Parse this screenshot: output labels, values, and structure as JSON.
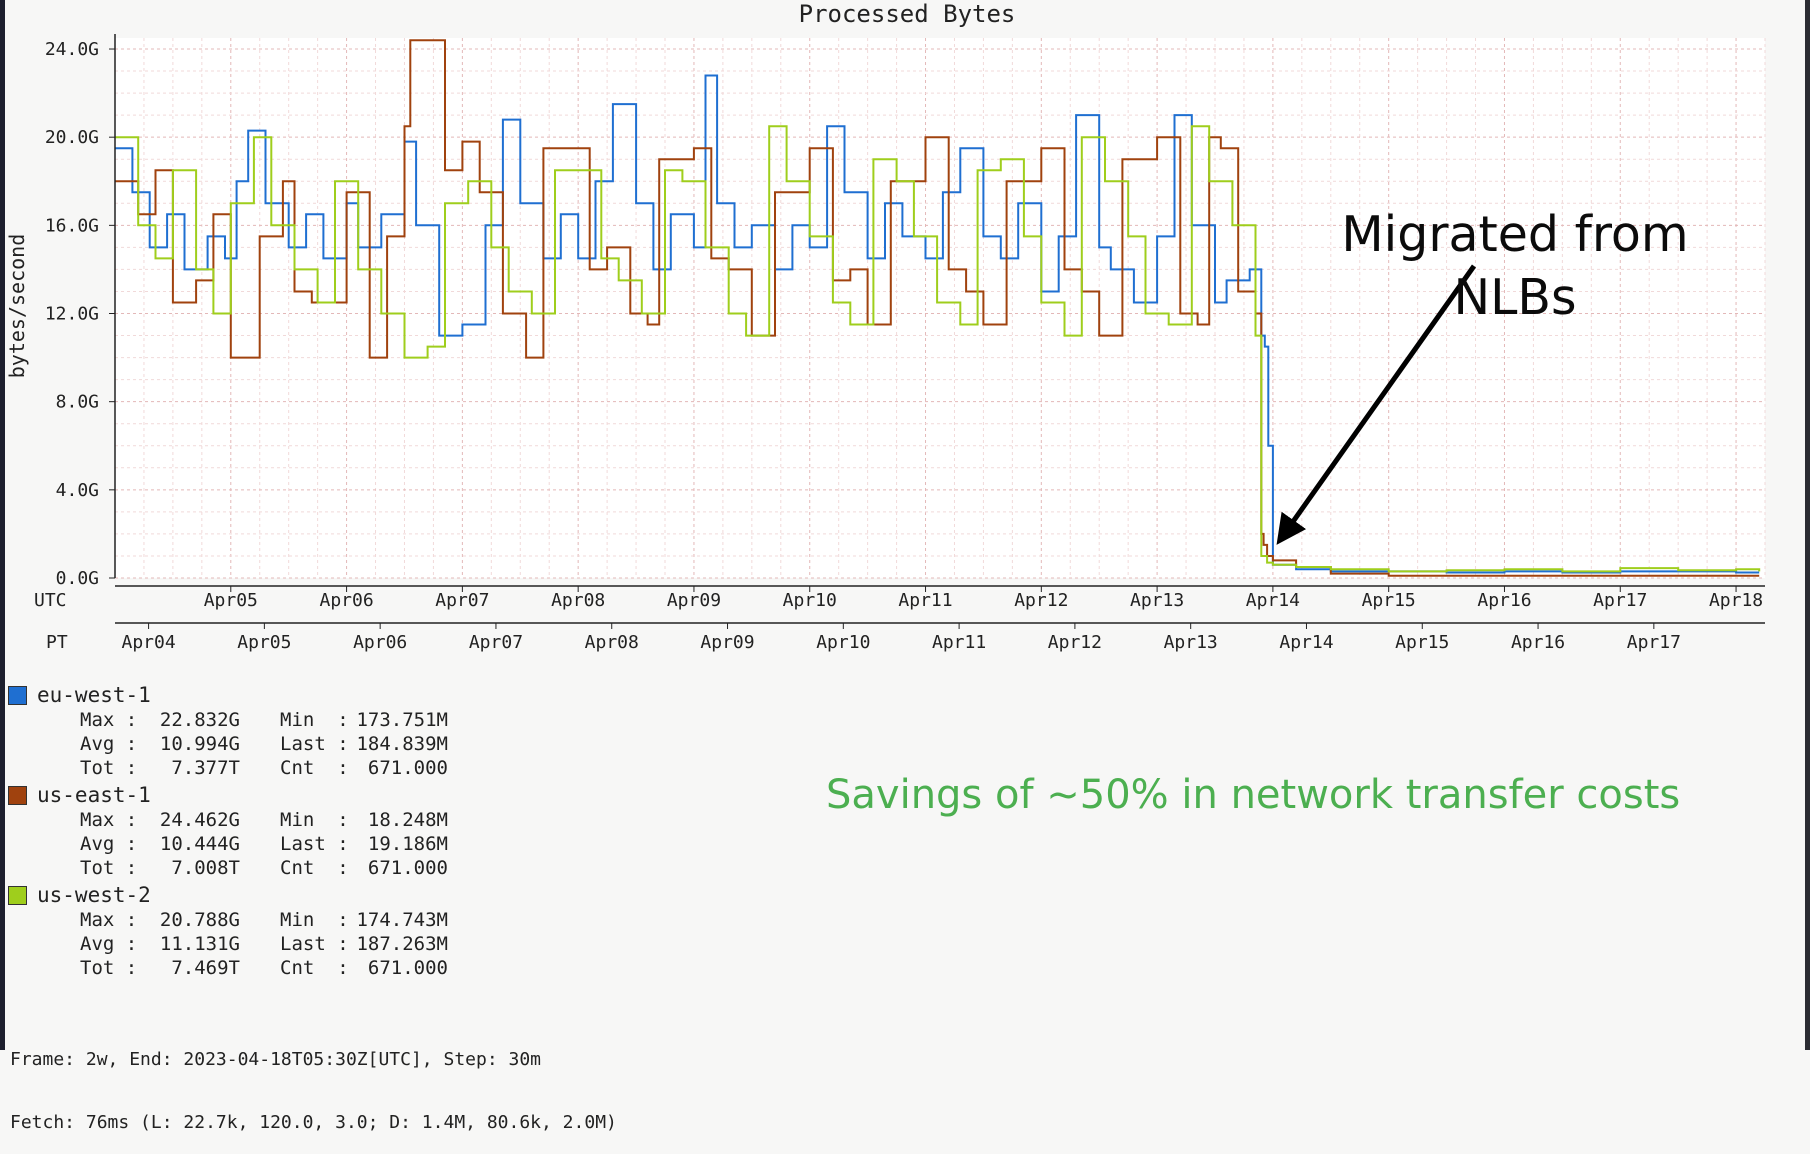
{
  "chart_data": {
    "type": "line",
    "title": "Processed Bytes",
    "ylabel": "bytes/second",
    "ylim": [
      0,
      24.5
    ],
    "yticks": [
      "0.0G",
      "4.0G",
      "8.0G",
      "12.0G",
      "16.0G",
      "20.0G",
      "24.0G"
    ],
    "ytick_values": [
      0,
      4,
      8,
      12,
      16,
      20,
      24
    ],
    "xlim": [
      3.0,
      17.25
    ],
    "utc_axis": {
      "label": "UTC",
      "ticks": [
        "Apr05",
        "Apr06",
        "Apr07",
        "Apr08",
        "Apr09",
        "Apr10",
        "Apr11",
        "Apr12",
        "Apr13",
        "Apr14",
        "Apr15",
        "Apr16",
        "Apr17",
        "Apr18"
      ],
      "tick_values": [
        4,
        5,
        6,
        7,
        8,
        9,
        10,
        11,
        12,
        13,
        14,
        15,
        16,
        17
      ]
    },
    "pt_axis": {
      "label": "PT",
      "ticks": [
        "Apr04",
        "Apr05",
        "Apr06",
        "Apr07",
        "Apr08",
        "Apr09",
        "Apr10",
        "Apr11",
        "Apr12",
        "Apr13",
        "Apr14",
        "Apr15",
        "Apr16",
        "Apr17"
      ],
      "tick_values": [
        3.29,
        4.29,
        5.29,
        6.29,
        7.29,
        8.29,
        9.29,
        10.29,
        11.29,
        12.29,
        13.29,
        14.29,
        15.29,
        16.29
      ]
    },
    "grid": true,
    "series": [
      {
        "name": "eu-west-1",
        "color": "#1f6fd1",
        "x": [
          3.0,
          3.15,
          3.3,
          3.45,
          3.6,
          3.8,
          3.95,
          4.05,
          4.15,
          4.3,
          4.5,
          4.65,
          4.8,
          5.0,
          5.1,
          5.3,
          5.5,
          5.6,
          5.8,
          6.0,
          6.2,
          6.35,
          6.5,
          6.7,
          6.85,
          7.0,
          7.15,
          7.3,
          7.5,
          7.65,
          7.8,
          8.0,
          8.1,
          8.2,
          8.35,
          8.5,
          8.7,
          8.85,
          9.0,
          9.15,
          9.3,
          9.5,
          9.65,
          9.8,
          10.0,
          10.15,
          10.3,
          10.5,
          10.65,
          10.8,
          11.0,
          11.15,
          11.3,
          11.5,
          11.6,
          11.8,
          12.0,
          12.15,
          12.3,
          12.5,
          12.6,
          12.8,
          12.9,
          12.93,
          12.96,
          13.0,
          13.2,
          13.5,
          14.0,
          14.5,
          15.0,
          15.5,
          16.0,
          16.5,
          17.0,
          17.2
        ],
        "y": [
          19.5,
          17.5,
          15.0,
          16.5,
          14.0,
          15.5,
          14.5,
          18.0,
          20.3,
          17.0,
          15.0,
          16.5,
          14.5,
          17.0,
          15.0,
          16.5,
          19.8,
          16.0,
          11.0,
          11.5,
          16.0,
          20.8,
          17.0,
          14.5,
          16.5,
          14.5,
          18.0,
          21.5,
          17.0,
          14.0,
          16.5,
          15.0,
          22.8,
          17.0,
          15.0,
          16.0,
          14.0,
          16.0,
          15.0,
          20.5,
          17.5,
          14.5,
          17.0,
          15.5,
          14.5,
          17.5,
          19.5,
          15.5,
          14.5,
          17.0,
          13.0,
          15.5,
          21.0,
          15.0,
          14.0,
          12.5,
          15.5,
          21.0,
          16.0,
          12.5,
          13.5,
          14.0,
          11.0,
          10.5,
          6.0,
          0.6,
          0.4,
          0.3,
          0.3,
          0.25,
          0.3,
          0.25,
          0.3,
          0.3,
          0.25,
          0.25
        ]
      },
      {
        "name": "us-east-1",
        "color": "#a0420e",
        "x": [
          3.0,
          3.2,
          3.35,
          3.5,
          3.7,
          3.85,
          4.0,
          4.25,
          4.45,
          4.55,
          4.7,
          5.0,
          5.2,
          5.35,
          5.5,
          5.55,
          5.85,
          6.0,
          6.15,
          6.35,
          6.55,
          6.7,
          7.0,
          7.1,
          7.25,
          7.45,
          7.6,
          7.7,
          8.0,
          8.15,
          8.3,
          8.5,
          8.7,
          9.0,
          9.2,
          9.35,
          9.5,
          9.7,
          10.0,
          10.2,
          10.35,
          10.5,
          10.7,
          11.0,
          11.2,
          11.35,
          11.5,
          11.7,
          12.0,
          12.2,
          12.35,
          12.45,
          12.55,
          12.7,
          12.85,
          12.9,
          12.92,
          12.95,
          13.0,
          13.2,
          13.5,
          14.0,
          14.5,
          15.0,
          15.5,
          16.0,
          16.5,
          17.0,
          17.2
        ],
        "y": [
          18.0,
          16.5,
          18.5,
          12.5,
          13.5,
          16.5,
          10.0,
          15.5,
          18.0,
          13.0,
          12.5,
          17.5,
          10.0,
          15.5,
          20.5,
          24.4,
          18.5,
          19.8,
          17.5,
          12.0,
          10.0,
          19.5,
          19.5,
          14.0,
          15.0,
          12.0,
          11.5,
          19.0,
          19.5,
          14.5,
          14.0,
          11.0,
          17.5,
          19.5,
          13.5,
          14.0,
          11.5,
          18.0,
          20.0,
          14.0,
          13.0,
          11.5,
          18.0,
          19.5,
          14.0,
          13.0,
          11.0,
          19.0,
          20.0,
          12.0,
          11.5,
          20.0,
          19.5,
          13.0,
          12.0,
          2.0,
          1.5,
          1.0,
          0.8,
          0.5,
          0.2,
          0.1,
          0.1,
          0.1,
          0.1,
          0.1,
          0.1,
          0.1,
          0.1
        ]
      },
      {
        "name": "us-west-2",
        "color": "#9fce1c",
        "x": [
          3.0,
          3.2,
          3.35,
          3.5,
          3.7,
          3.85,
          4.0,
          4.2,
          4.35,
          4.55,
          4.75,
          4.9,
          5.1,
          5.3,
          5.5,
          5.7,
          5.85,
          6.05,
          6.25,
          6.4,
          6.6,
          6.8,
          7.0,
          7.2,
          7.35,
          7.55,
          7.75,
          7.9,
          8.1,
          8.3,
          8.45,
          8.65,
          8.8,
          9.0,
          9.2,
          9.35,
          9.55,
          9.75,
          9.9,
          10.1,
          10.3,
          10.45,
          10.65,
          10.85,
          11.0,
          11.2,
          11.35,
          11.55,
          11.75,
          11.9,
          12.1,
          12.3,
          12.45,
          12.65,
          12.85,
          12.9,
          12.95,
          13.0,
          13.2,
          13.5,
          14.0,
          14.5,
          15.0,
          15.5,
          16.0,
          16.5,
          17.0,
          17.2
        ],
        "y": [
          20.0,
          16.0,
          14.5,
          18.5,
          14.0,
          12.0,
          17.0,
          20.0,
          16.0,
          14.0,
          12.5,
          18.0,
          14.0,
          12.0,
          10.0,
          10.5,
          17.0,
          18.0,
          15.0,
          13.0,
          12.0,
          18.5,
          18.5,
          14.5,
          13.5,
          12.0,
          18.5,
          18.0,
          15.0,
          12.0,
          11.0,
          20.5,
          18.0,
          15.5,
          12.5,
          11.5,
          19.0,
          18.0,
          15.5,
          12.5,
          11.5,
          18.5,
          19.0,
          15.5,
          12.5,
          11.0,
          20.0,
          18.0,
          15.5,
          12.0,
          11.5,
          20.5,
          18.0,
          16.0,
          11.0,
          1.0,
          0.7,
          0.6,
          0.5,
          0.4,
          0.3,
          0.35,
          0.4,
          0.3,
          0.45,
          0.35,
          0.4,
          0.3
        ]
      }
    ],
    "annotation": {
      "text_line1": "Migrated from",
      "text_line2": "NLBs"
    }
  },
  "legend": [
    {
      "name": "eu-west-1",
      "color": "#1f6fd1",
      "rows": [
        {
          "l1": "Max :",
          "v1": "22.832G",
          "l2": "Min  :",
          "v2": "173.751M"
        },
        {
          "l1": "Avg :",
          "v1": "10.994G",
          "l2": "Last :",
          "v2": "184.839M"
        },
        {
          "l1": "Tot :",
          "v1": "7.377T",
          "l2": "Cnt  :",
          "v2": "671.000"
        }
      ]
    },
    {
      "name": "us-east-1",
      "color": "#a0420e",
      "rows": [
        {
          "l1": "Max :",
          "v1": "24.462G",
          "l2": "Min  :",
          "v2": "18.248M"
        },
        {
          "l1": "Avg :",
          "v1": "10.444G",
          "l2": "Last :",
          "v2": "19.186M"
        },
        {
          "l1": "Tot :",
          "v1": "7.008T",
          "l2": "Cnt  :",
          "v2": "671.000"
        }
      ]
    },
    {
      "name": "us-west-2",
      "color": "#9fce1c",
      "rows": [
        {
          "l1": "Max :",
          "v1": "20.788G",
          "l2": "Min  :",
          "v2": "174.743M"
        },
        {
          "l1": "Avg :",
          "v1": "11.131G",
          "l2": "Last :",
          "v2": "187.263M"
        },
        {
          "l1": "Tot :",
          "v1": "7.469T",
          "l2": "Cnt  :",
          "v2": "671.000"
        }
      ]
    }
  ],
  "savings_text": "Savings of ~50% in network transfer costs",
  "footer": {
    "line1": "Frame: 2w, End: 2023-04-18T05:30Z[UTC], Step: 30m",
    "line2": "Fetch: 76ms (L: 22.7k, 120.0, 3.0; D: 1.4M, 80.6k, 2.0M)"
  }
}
